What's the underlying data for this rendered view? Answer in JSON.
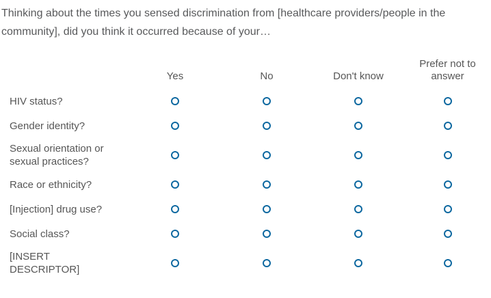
{
  "question": {
    "text": "Thinking about the times you sensed discrimination from [healthcare providers/people in the community], did you think it occurred because of your…"
  },
  "matrix": {
    "columns": [
      "Yes",
      "No",
      "Don't know",
      "Prefer not to answer"
    ],
    "rows": [
      "HIV status?",
      "Gender identity?",
      "Sexual orientation or sexual practices?",
      "Race or ethnicity?",
      "[Injection] drug use?",
      "Social class?",
      "[INSERT DESCRIPTOR]"
    ]
  },
  "colors": {
    "radio_border": "#0d68a0",
    "text": "#565656"
  }
}
